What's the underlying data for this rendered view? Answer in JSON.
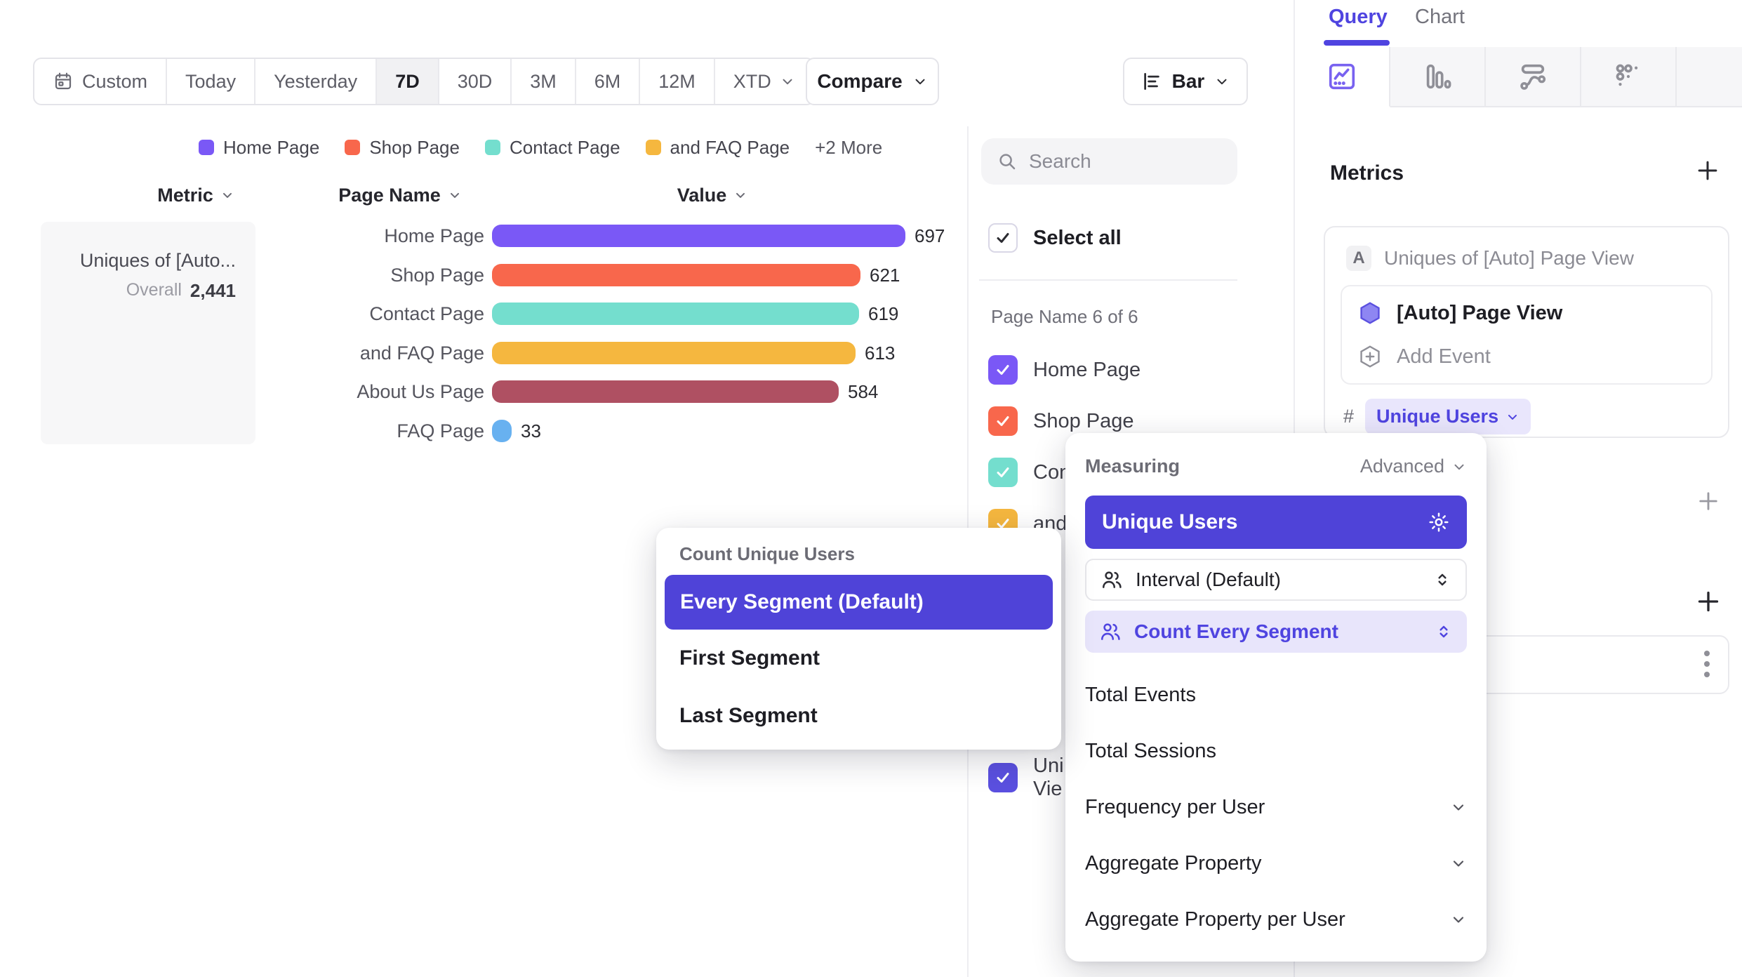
{
  "toolbar": {
    "date_ranges": [
      "Custom",
      "Today",
      "Yesterday",
      "7D",
      "30D",
      "3M",
      "6M",
      "12M",
      "XTD"
    ],
    "selected_range": "7D",
    "compare_label": "Compare",
    "chart_type_label": "Bar"
  },
  "legend": {
    "items": [
      {
        "label": "Home Page",
        "color": "#7a58f6"
      },
      {
        "label": "Shop Page",
        "color": "#f8674c"
      },
      {
        "label": "Contact Page",
        "color": "#74dece"
      },
      {
        "label": "and FAQ Page",
        "color": "#f5b73f"
      }
    ],
    "more_label": "+2 More"
  },
  "table_headers": {
    "metric": "Metric",
    "page_name": "Page Name",
    "value": "Value"
  },
  "metric_card": {
    "title": "Uniques of [Auto...",
    "overall_label": "Overall",
    "overall_value": "2,441"
  },
  "chart_data": {
    "type": "bar",
    "orientation": "horizontal",
    "title": "Uniques of [Auto] Page View",
    "categories": [
      "Home Page",
      "Shop Page",
      "Contact Page",
      "and FAQ Page",
      "About Us Page",
      "FAQ Page"
    ],
    "values": [
      697,
      621,
      619,
      613,
      584,
      33
    ],
    "colors": [
      "#7a58f6",
      "#f8674c",
      "#74dece",
      "#f5b73f",
      "#af5062",
      "#68b1f0"
    ],
    "overall_total": 2441,
    "value_labels_shown": true,
    "xlim": [
      0,
      697
    ]
  },
  "sidebar": {
    "search_placeholder": "Search",
    "select_all_label": "Select all",
    "group_label": "Page Name 6 of 6",
    "items": [
      {
        "label": "Home Page",
        "color": "#7a58f6",
        "checked": true
      },
      {
        "label": "Shop Page",
        "color": "#f8674c",
        "checked": true
      },
      {
        "label": "Contact Page",
        "color": "#74dece",
        "checked": true
      },
      {
        "label": "and FAQ Page",
        "color": "#f5b73f",
        "checked": true
      },
      {
        "label_line1": "Uni",
        "label_line2": "Vie",
        "color": "#5b50e0",
        "checked": true
      }
    ]
  },
  "panel": {
    "tabs": {
      "query": "Query",
      "chart": "Chart"
    },
    "metrics_heading": "Metrics",
    "metric": {
      "letter": "A",
      "title": "Uniques of [Auto] Page View",
      "event_name": "[Auto] Page View",
      "add_event_label": "Add Event",
      "measure_symbol": "#",
      "measurement": "Unique Users"
    }
  },
  "measuring_popup": {
    "title": "Measuring",
    "advanced_label": "Advanced",
    "selected_option": "Unique Users",
    "interval_label": "Interval (Default)",
    "segment_label": "Count Every Segment",
    "options": [
      "Total Events",
      "Total Sessions",
      "Frequency per User",
      "Aggregate Property",
      "Aggregate Property per User"
    ]
  },
  "segment_popup": {
    "title": "Count Unique Users",
    "selected_option": "Every Segment (Default)",
    "options": [
      "First Segment",
      "Last Segment"
    ]
  },
  "colors": {
    "accent": "#4f44e0",
    "accent_selected": "#4f43d8",
    "accent_light": "#e8e5fb"
  }
}
